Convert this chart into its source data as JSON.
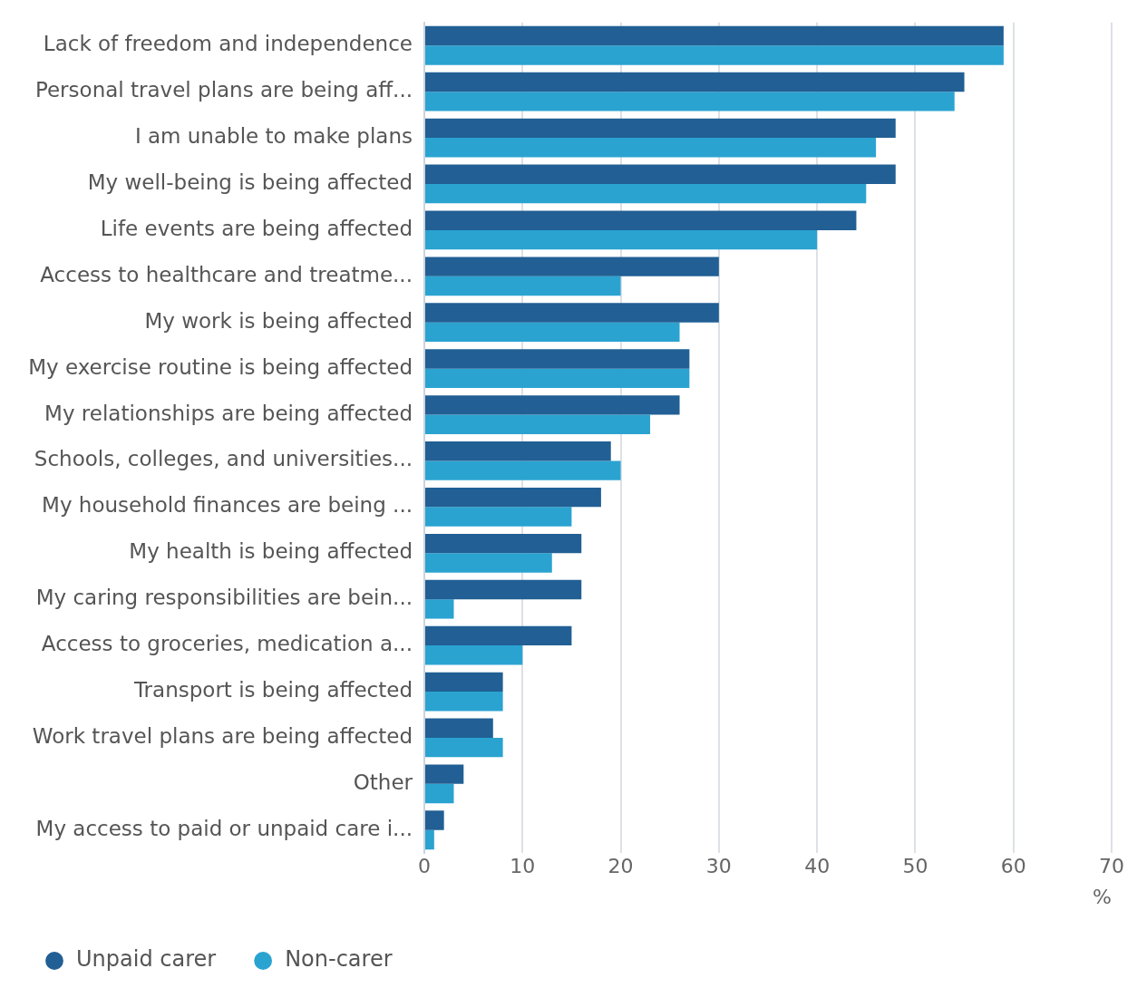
{
  "chart_data": {
    "type": "bar",
    "orientation": "horizontal",
    "xlabel": "%",
    "categories": [
      "Lack of freedom and independence",
      "Personal travel plans are being aff...",
      "I am unable to make plans",
      "My well-being is being affected",
      "Life events are being affected",
      "Access to healthcare and treatme...",
      "My work is being affected",
      "My exercise routine is being affected",
      "My relationships are being affected",
      "Schools, colleges, and universities...",
      "My household finances are being ...",
      "My health is being affected",
      "My caring responsibilities are bein...",
      "Access to groceries, medication a...",
      "Transport is being affected",
      "Work travel plans are being affected",
      "Other",
      "My access to paid or unpaid care i..."
    ],
    "series": [
      {
        "name": "Unpaid carer",
        "color": "#215f94",
        "values": [
          59,
          55,
          48,
          48,
          44,
          30,
          30,
          27,
          26,
          19,
          18,
          16,
          16,
          15,
          8,
          7,
          4,
          2
        ]
      },
      {
        "name": "Non-carer",
        "color": "#2aa3d1",
        "values": [
          59,
          54,
          46,
          45,
          40,
          20,
          26,
          27,
          23,
          20,
          15,
          13,
          3,
          10,
          8,
          8,
          3,
          1
        ]
      }
    ],
    "xlim": [
      0,
      70
    ],
    "xticks": [
      0,
      10,
      20,
      30,
      40,
      50,
      60,
      70
    ],
    "grid": "x",
    "legend": "bottom"
  }
}
